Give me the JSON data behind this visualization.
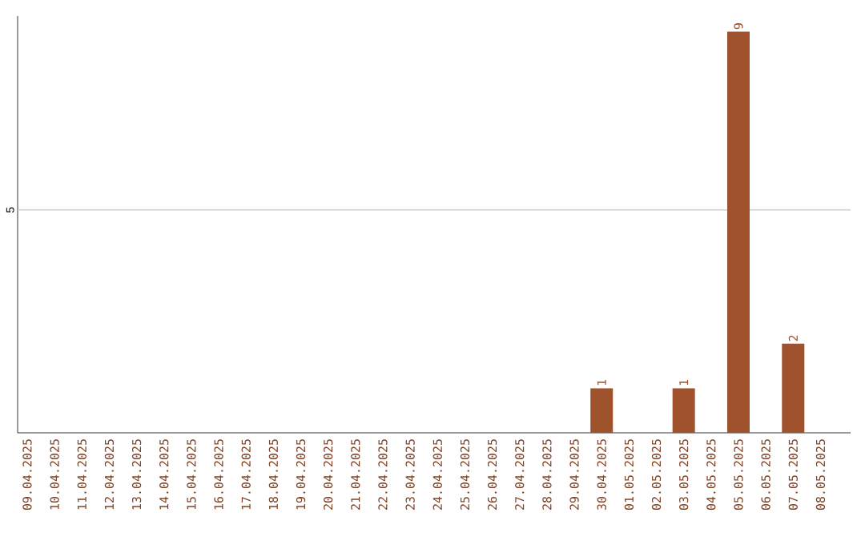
{
  "chart_data": {
    "type": "bar",
    "categories": [
      "09.04.2025",
      "10.04.2025",
      "11.04.2025",
      "12.04.2025",
      "13.04.2025",
      "14.04.2025",
      "15.04.2025",
      "16.04.2025",
      "17.04.2025",
      "18.04.2025",
      "19.04.2025",
      "20.04.2025",
      "21.04.2025",
      "22.04.2025",
      "23.04.2025",
      "24.04.2025",
      "25.04.2025",
      "26.04.2025",
      "27.04.2025",
      "28.04.2025",
      "29.04.2025",
      "30.04.2025",
      "01.05.2025",
      "02.05.2025",
      "03.05.2025",
      "04.05.2025",
      "05.05.2025",
      "06.05.2025",
      "07.05.2025",
      "08.05.2025"
    ],
    "values": [
      null,
      null,
      null,
      null,
      null,
      null,
      null,
      null,
      null,
      null,
      null,
      null,
      null,
      null,
      null,
      null,
      null,
      null,
      null,
      null,
      null,
      1,
      null,
      null,
      1,
      null,
      9,
      null,
      2,
      null
    ],
    "data_labels": true,
    "color": "#a0522d",
    "ylim": [
      0,
      9.35
    ],
    "ref_lines": [
      {
        "axis": "y",
        "value": 5,
        "label": "5",
        "color": "#c8c8c8"
      }
    ]
  }
}
